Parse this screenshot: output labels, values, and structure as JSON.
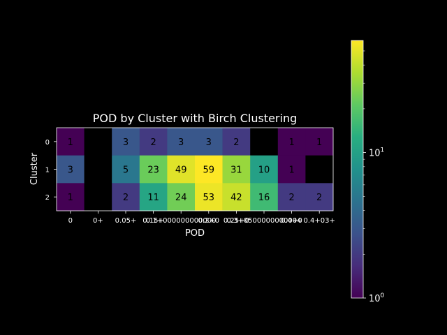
{
  "chart_data": {
    "type": "heatmap",
    "title": "POD by Cluster with Birch Clustering",
    "xlabel": "POD",
    "ylabel": "Cluster",
    "x_categories": [
      "0",
      "0+",
      "0.05+",
      "0.15+",
      "0.1+000000000000",
      "0.2+0",
      "0.25+0",
      "0.3+0500000000004",
      "0.4+0",
      "0.4+03+"
    ],
    "x_tick_labels": [
      "0",
      "0+",
      "0.05+",
      "0.15+",
      "0.1+000000000000",
      "0.2+0",
      "0.25+0",
      "0.3+0500000000004",
      "0.4+0",
      "0.4+03+"
    ],
    "y_categories": [
      "0",
      "1",
      "2"
    ],
    "values": [
      [
        1,
        null,
        3,
        2,
        3,
        3,
        2,
        null,
        1,
        1
      ],
      [
        3,
        null,
        5,
        23,
        49,
        59,
        31,
        10,
        1,
        null
      ],
      [
        1,
        null,
        2,
        11,
        24,
        53,
        42,
        16,
        2,
        2
      ]
    ],
    "colormap": "viridis",
    "color_scale": "log",
    "colorbar_range": [
      1,
      59
    ],
    "colorbar_ticks": [
      {
        "value": 1,
        "base": "10",
        "exp": "0"
      },
      {
        "value": 10,
        "base": "10",
        "exp": "1"
      }
    ],
    "missing_color": "#000000",
    "background": "#000000"
  }
}
